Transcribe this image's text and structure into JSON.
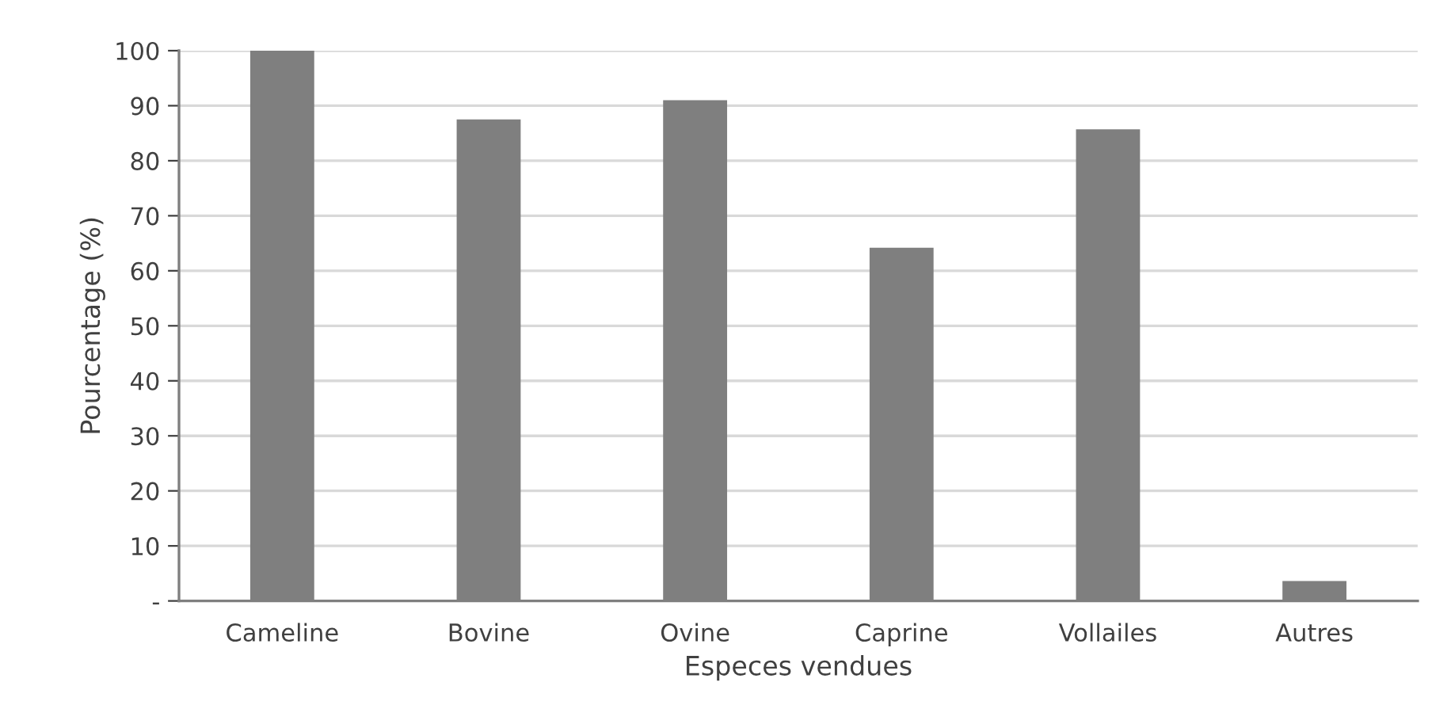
{
  "chart_data": {
    "type": "bar",
    "xlabel": "Especes vendues",
    "ylabel": "Pourcentage (%)",
    "categories": [
      "Cameline",
      "Bovine",
      "Ovine",
      "Caprine",
      "Vollailes",
      "Autres"
    ],
    "values": [
      100,
      87.5,
      91.0,
      64.2,
      85.7,
      3.6
    ],
    "color": "#7f7f7f",
    "ylim": [
      0,
      100
    ],
    "yticks": [
      {
        "value": 0,
        "label": "-"
      },
      10,
      20,
      30,
      40,
      50,
      60,
      70,
      80,
      90,
      100
    ],
    "grid": "y"
  }
}
